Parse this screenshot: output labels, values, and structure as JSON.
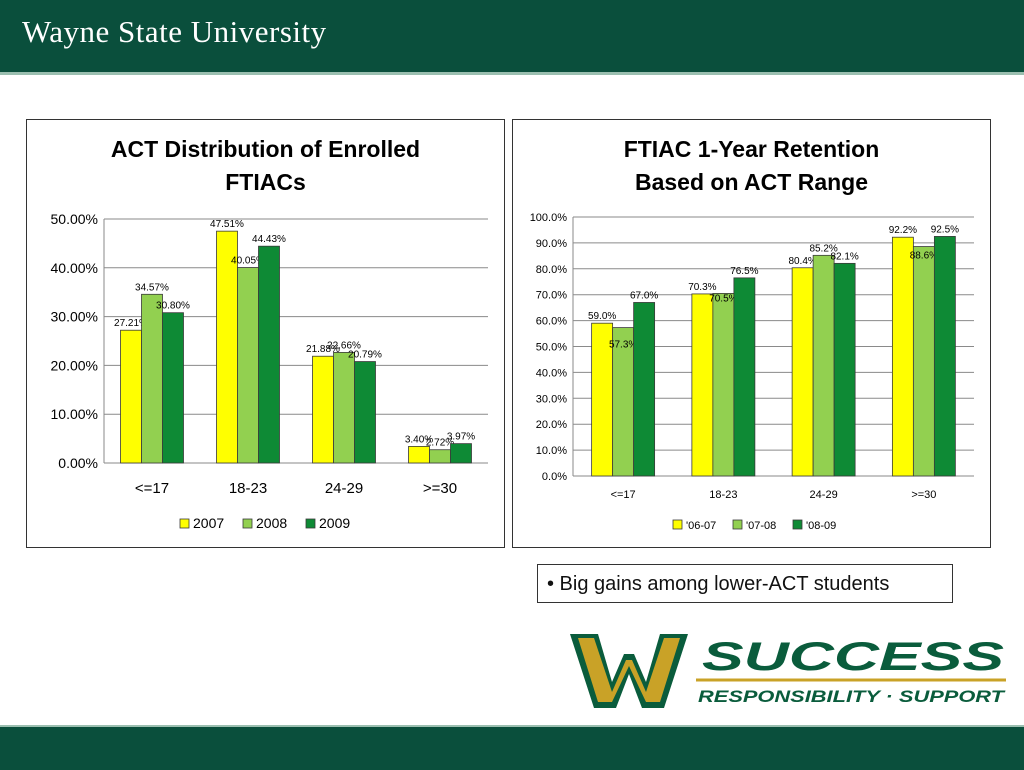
{
  "header": {
    "university": "Wayne State University"
  },
  "colors": {
    "header_green": "#0a4f3c",
    "yellow": "#ffff00",
    "light_green": "#92d050",
    "dark_green": "#0e8a35",
    "gold": "#c9a227"
  },
  "callout": {
    "bullet_text": "• Big gains among lower-ACT students"
  },
  "logo": {
    "text_main": "SUCCESS",
    "text_sub": "RESPONSIBILITY · SUPPORT"
  },
  "chart_data": [
    {
      "type": "bar",
      "title_lines": [
        "ACT Distribution of Enrolled",
        "FTIACs"
      ],
      "categories": [
        "<=17",
        "18-23",
        "24-29",
        ">=30"
      ],
      "series": [
        {
          "name": "2007",
          "values": [
            27.21,
            47.51,
            21.88,
            3.4
          ],
          "labels": [
            "27.21%",
            "47.51%",
            "21.88%",
            "3.40%"
          ]
        },
        {
          "name": "2008",
          "values": [
            34.57,
            40.05,
            22.66,
            2.72
          ],
          "labels": [
            "34.57%",
            "40.05%",
            "22.66%",
            "2.72%"
          ]
        },
        {
          "name": "2009",
          "values": [
            30.8,
            44.43,
            20.79,
            3.97
          ],
          "labels": [
            "30.80%",
            "44.43%",
            "20.79%",
            "3.97%"
          ]
        }
      ],
      "ylim": [
        0,
        50
      ],
      "yticks": [
        "0.00%",
        "10.00%",
        "20.00%",
        "30.00%",
        "40.00%",
        "50.00%"
      ],
      "grid": true,
      "legend": "bottom"
    },
    {
      "type": "bar",
      "title_lines": [
        "FTIAC 1-Year Retention",
        "Based on ACT Range"
      ],
      "categories": [
        "<=17",
        "18-23",
        "24-29",
        ">=30"
      ],
      "series": [
        {
          "name": "'06-07",
          "values": [
            59.0,
            70.3,
            80.4,
            92.2
          ],
          "labels": [
            "59.0%",
            "70.3%",
            "80.4%",
            "92.2%"
          ]
        },
        {
          "name": "'07-08",
          "values": [
            57.3,
            70.5,
            85.2,
            88.6
          ],
          "labels": [
            "57.3%",
            "70.5%",
            "85.2%",
            "88.6%"
          ]
        },
        {
          "name": "'08-09",
          "values": [
            67.0,
            76.5,
            82.1,
            92.5
          ],
          "labels": [
            "67.0%",
            "76.5%",
            "82.1%",
            "92.5%"
          ]
        }
      ],
      "ylim": [
        0,
        100
      ],
      "yticks": [
        "0.0%",
        "10.0%",
        "20.0%",
        "30.0%",
        "40.0%",
        "50.0%",
        "60.0%",
        "70.0%",
        "80.0%",
        "90.0%",
        "100.0%"
      ],
      "grid": true,
      "legend": "bottom"
    }
  ]
}
